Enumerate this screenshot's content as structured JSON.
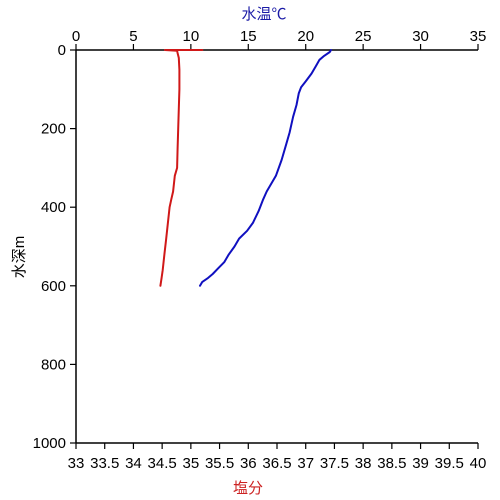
{
  "chart_data": {
    "type": "line",
    "y_axis": {
      "label": "水深m",
      "range": [
        0,
        1000
      ],
      "ticks": [
        0,
        200,
        400,
        600,
        800,
        1000
      ],
      "tick_labels": [
        "0",
        "200",
        "400",
        "600",
        "800",
        "1000"
      ],
      "inverted": true
    },
    "x_axis_top": {
      "label": "水温℃",
      "label_color": "#1a1aa6",
      "range": [
        0,
        35
      ],
      "ticks": [
        0,
        5,
        10,
        15,
        20,
        25,
        30,
        35
      ],
      "tick_labels": [
        "0",
        "5",
        "10",
        "15",
        "20",
        "25",
        "30",
        "35"
      ]
    },
    "x_axis_bottom": {
      "label": "塩分",
      "label_color": "#cc2222",
      "range": [
        33,
        40
      ],
      "ticks": [
        33,
        33.5,
        34,
        34.5,
        35,
        35.5,
        36,
        36.5,
        37,
        37.5,
        38,
        38.5,
        39,
        39.5,
        40
      ],
      "tick_labels": [
        "33",
        "33.5",
        "34",
        "34.5",
        "35",
        "35.5",
        "36",
        "36.5",
        "37",
        "37.5",
        "38",
        "38.5",
        "39",
        "39.5",
        "40"
      ]
    },
    "series": [
      {
        "axis": "top",
        "color": "#1010c0",
        "points": [
          [
            22.2,
            0
          ],
          [
            22.1,
            5
          ],
          [
            21.6,
            15
          ],
          [
            21.2,
            25
          ],
          [
            20.9,
            40
          ],
          [
            20.5,
            60
          ],
          [
            20.0,
            80
          ],
          [
            19.6,
            95
          ],
          [
            19.4,
            110
          ],
          [
            19.2,
            140
          ],
          [
            18.9,
            170
          ],
          [
            18.6,
            210
          ],
          [
            18.3,
            240
          ],
          [
            17.9,
            280
          ],
          [
            17.4,
            320
          ],
          [
            17.0,
            340
          ],
          [
            16.6,
            360
          ],
          [
            16.3,
            380
          ],
          [
            15.9,
            410
          ],
          [
            15.4,
            440
          ],
          [
            14.9,
            460
          ],
          [
            14.2,
            480
          ],
          [
            13.8,
            500
          ],
          [
            13.3,
            520
          ],
          [
            12.9,
            540
          ],
          [
            12.4,
            555
          ],
          [
            11.9,
            570
          ],
          [
            11.5,
            580
          ],
          [
            11.0,
            590
          ],
          [
            10.8,
            600
          ]
        ]
      },
      {
        "axis": "bottom",
        "color": "#d01818",
        "points": [
          [
            35.2,
            0
          ],
          [
            34.55,
            0
          ],
          [
            34.76,
            2
          ],
          [
            34.77,
            8
          ],
          [
            34.79,
            20
          ],
          [
            34.8,
            50
          ],
          [
            34.8,
            100
          ],
          [
            34.79,
            150
          ],
          [
            34.78,
            200
          ],
          [
            34.77,
            250
          ],
          [
            34.76,
            300
          ],
          [
            34.72,
            320
          ],
          [
            34.69,
            360
          ],
          [
            34.66,
            380
          ],
          [
            34.63,
            400
          ],
          [
            34.6,
            440
          ],
          [
            34.57,
            480
          ],
          [
            34.54,
            520
          ],
          [
            34.51,
            560
          ],
          [
            34.49,
            580
          ],
          [
            34.47,
            600
          ]
        ]
      }
    ]
  }
}
